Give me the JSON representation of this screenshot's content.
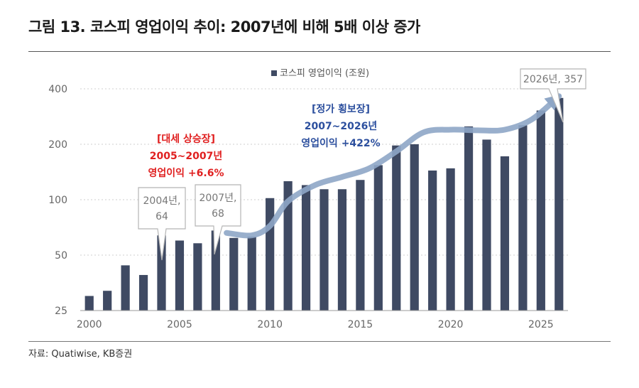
{
  "figure": {
    "title": "그림 13. 코스피 영업이익 추이: 2007년에 비해 5배 이상 증가",
    "source": "자료: Quatiwise, KB증권"
  },
  "chart_data": {
    "type": "bar",
    "yscale": "log",
    "ylim": [
      25,
      400
    ],
    "yticks": [
      25,
      50,
      100,
      200,
      400
    ],
    "xticks": [
      2000,
      2005,
      2010,
      2015,
      2020,
      2025
    ],
    "xlim": [
      1999.5,
      2026.5
    ],
    "legend": {
      "label": "코스피 영업이익 (조원)",
      "position": "top-center"
    },
    "colors": {
      "bar": "#3f4a63",
      "trend": "#8ea6c6",
      "accent_red": "#e02020",
      "accent_blue": "#2c4f9e"
    },
    "x": [
      2000,
      2001,
      2002,
      2003,
      2004,
      2005,
      2006,
      2007,
      2008,
      2009,
      2010,
      2011,
      2012,
      2013,
      2014,
      2015,
      2016,
      2017,
      2018,
      2019,
      2020,
      2021,
      2022,
      2023,
      2024,
      2025,
      2026
    ],
    "values": [
      30,
      32,
      44,
      39,
      64,
      60,
      58,
      68,
      62,
      63,
      102,
      126,
      120,
      114,
      114,
      128,
      154,
      197,
      200,
      144,
      148,
      250,
      212,
      172,
      254,
      305,
      357
    ],
    "annotations": [
      {
        "label": "2004년,\n64",
        "x": 2004
      },
      {
        "label": "2007년,\n68",
        "x": 2007
      },
      {
        "label": "2026년, 357",
        "x": 2026
      }
    ],
    "text_notes": [
      {
        "lines": [
          "[대세 상승장]",
          "2005~2007년",
          "영업이익 +6.6%"
        ],
        "color": "red"
      },
      {
        "lines": [
          "[정가 횡보장]",
          "2007~2026년",
          "영업이익 +422%"
        ],
        "color": "blue"
      }
    ]
  }
}
